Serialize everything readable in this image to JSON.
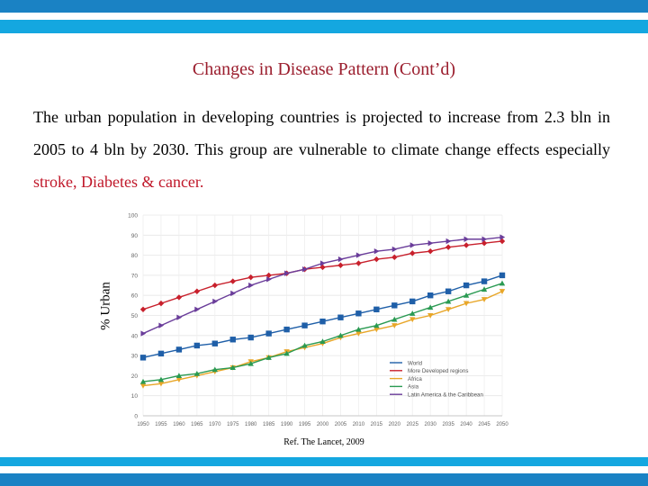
{
  "slide": {
    "title": "Changes in Disease Pattern (Cont’d)",
    "para_text": "The urban population in developing countries is projected to increase from 2.3 bln in 2005 to 4 bln by 2030. This group are vulnerable to climate change effects especially ",
    "para_highlight": "stroke, Diabetes & cancer.",
    "reference": "Ref. The Lancet, 2009",
    "colors": {
      "dark_blue": "#1a82c4",
      "light_blue": "#14a7e0",
      "title_red": "#9b1e2e",
      "highlight_red": "#c0182a"
    }
  },
  "chart_data": {
    "type": "line",
    "title": "",
    "xlabel": "",
    "ylabel": "% Urban",
    "x": [
      1950,
      1955,
      1960,
      1965,
      1970,
      1975,
      1980,
      1985,
      1990,
      1995,
      2000,
      2005,
      2010,
      2015,
      2020,
      2025,
      2030,
      2035,
      2040,
      2045,
      2050
    ],
    "xlim": [
      1950,
      2050
    ],
    "ylim": [
      0,
      100
    ],
    "yticks": [
      0,
      10,
      20,
      30,
      40,
      50,
      60,
      70,
      80,
      90,
      100
    ],
    "grid": true,
    "legend": "bottom-right",
    "series": [
      {
        "name": "World",
        "color": "#1f5fa8",
        "marker": "square",
        "values": [
          29,
          31,
          33,
          35,
          36,
          38,
          39,
          41,
          43,
          45,
          47,
          49,
          51,
          53,
          55,
          57,
          60,
          62,
          65,
          67,
          70
        ]
      },
      {
        "name": "More Developed regions",
        "color": "#c8202c",
        "marker": "diamond",
        "values": [
          53,
          56,
          59,
          62,
          65,
          67,
          69,
          70,
          71,
          73,
          74,
          75,
          76,
          78,
          79,
          81,
          82,
          84,
          85,
          86,
          87
        ]
      },
      {
        "name": "Africa",
        "color": "#e8a628",
        "marker": "triangle-down",
        "values": [
          15,
          16,
          18,
          20,
          22,
          24,
          27,
          29,
          32,
          34,
          36,
          39,
          41,
          43,
          45,
          48,
          50,
          53,
          56,
          58,
          62
        ]
      },
      {
        "name": "Asia",
        "color": "#2a9a52",
        "marker": "triangle-up",
        "values": [
          17,
          18,
          20,
          21,
          23,
          24,
          26,
          29,
          31,
          35,
          37,
          40,
          43,
          45,
          48,
          51,
          54,
          57,
          60,
          63,
          66
        ]
      },
      {
        "name": "Latin America & the Caribbean",
        "color": "#6a3d9a",
        "marker": "triangle-right",
        "values": [
          41,
          45,
          49,
          53,
          57,
          61,
          65,
          68,
          71,
          73,
          76,
          78,
          80,
          82,
          83,
          85,
          86,
          87,
          88,
          88,
          89
        ]
      }
    ]
  }
}
